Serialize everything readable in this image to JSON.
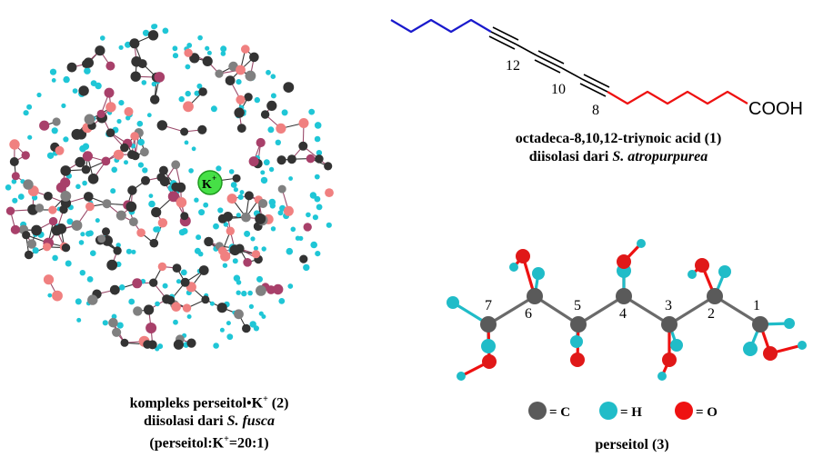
{
  "compound1": {
    "labels": [
      "12",
      "10",
      "8"
    ],
    "cooh": "COOH",
    "name": "octadeca-8,10,12-triynoic acid (1)",
    "source_prefix": "diisolasi dari ",
    "source_species": "S. atropurpurea",
    "colors": {
      "alkyl_tail": "#1a1acc",
      "acid_chain": "#ee1111",
      "triple_bonds": "#000000"
    }
  },
  "compound2": {
    "ion_label": "K",
    "ion_charge": "+",
    "name_prefix": "kompleks perseitol",
    "name_bullet": "•",
    "name_ion": "K",
    "name_charge": "+",
    "name_suffix": " (2)",
    "source_prefix": "diisolasi dari ",
    "source_species": "S. fusca",
    "ratio_prefix": "(perseitol:K",
    "ratio_charge": "+",
    "ratio_suffix": "=20:1)",
    "colors": {
      "carbon_dark": "#333333",
      "carbon_grey": "#808080",
      "hydrogen": "#1fc6d6",
      "oxygen_pink": "#f08080",
      "oxygen_maroon": "#a8406a",
      "potassium": "#3ee23e"
    }
  },
  "compound3": {
    "carbon_labels": [
      "7",
      "6",
      "5",
      "4",
      "3",
      "2",
      "1"
    ],
    "name": "perseitol (3)",
    "legend": [
      {
        "symbol": "= C",
        "color": "#5a5a5a"
      },
      {
        "symbol": "= H",
        "color": "#20bcc8"
      },
      {
        "symbol": "= O",
        "color": "#ee1111"
      }
    ]
  }
}
